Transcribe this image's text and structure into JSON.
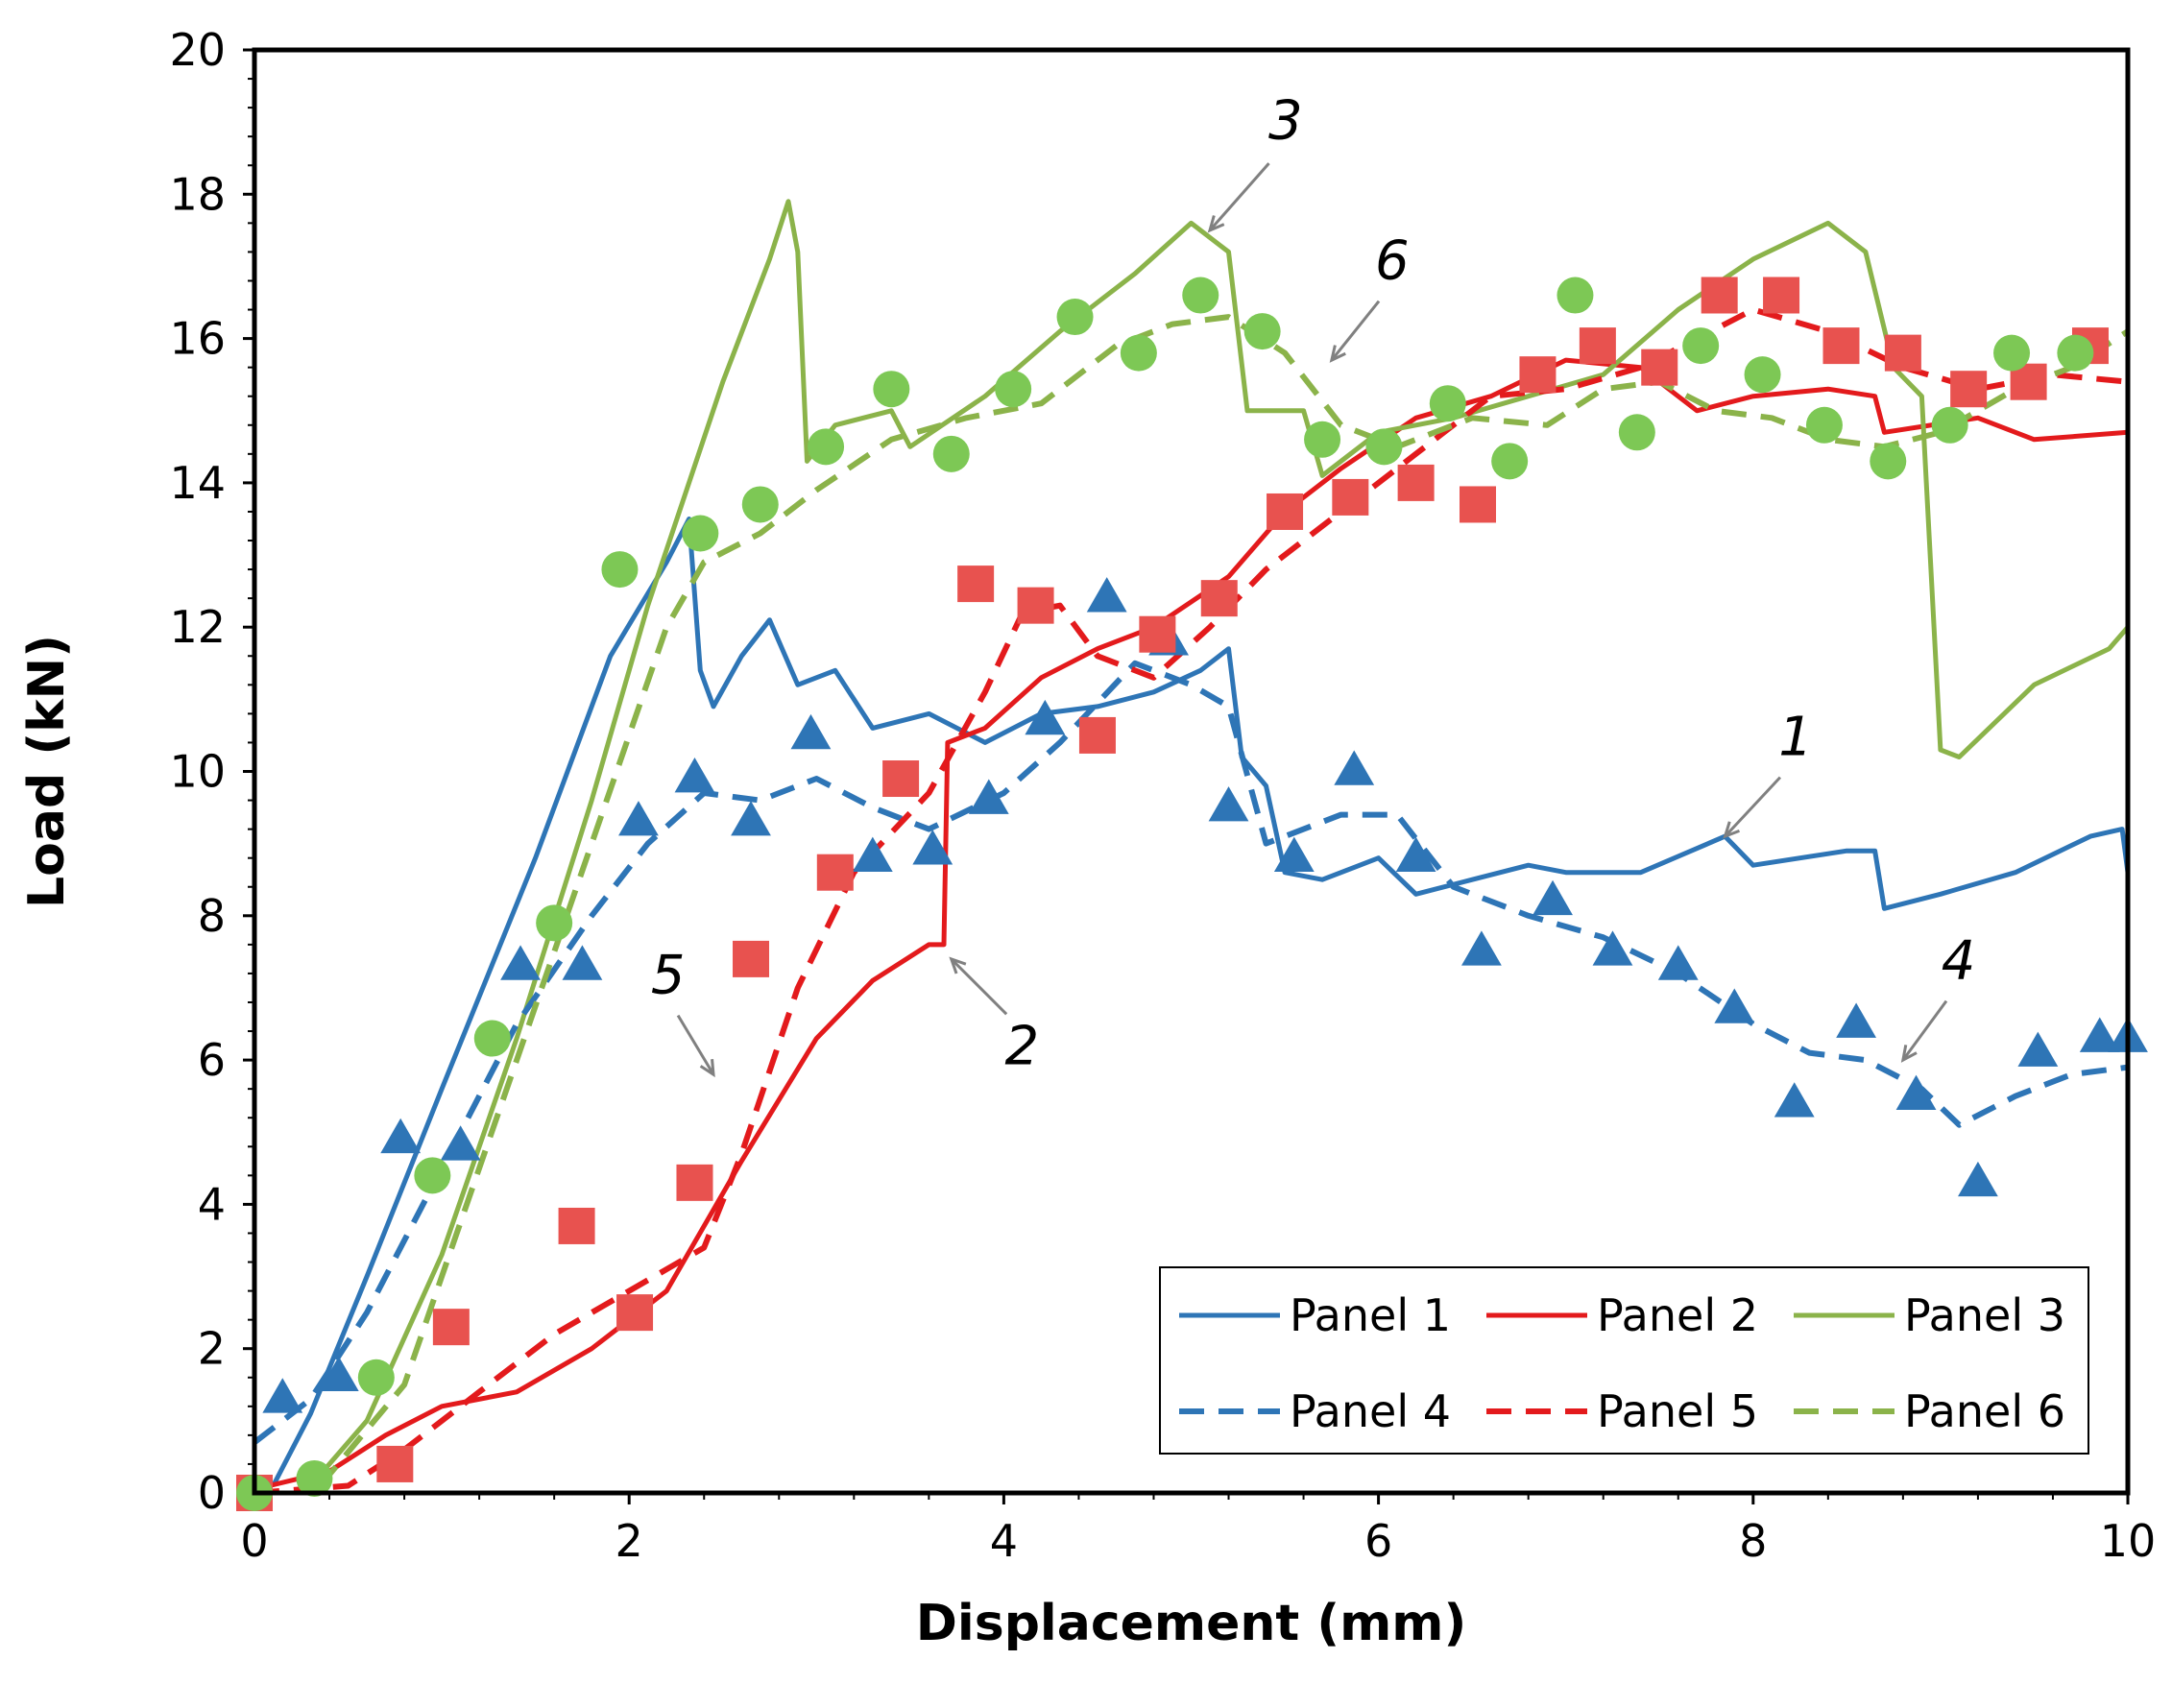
{
  "chart_data": {
    "type": "line",
    "title": "",
    "xlabel": "Displacement (mm)",
    "ylabel": "Load (kN)",
    "xlim": [
      0,
      10
    ],
    "ylim": [
      0,
      20
    ],
    "x_ticks": [
      "0",
      "2",
      "4",
      "6",
      "8",
      "10"
    ],
    "y_ticks": [
      "0",
      "2",
      "4",
      "6",
      "8",
      "10",
      "12",
      "14",
      "16",
      "18",
      "20"
    ],
    "grid": false,
    "legend_position": "bottom-right",
    "series": [
      {
        "name": "Panel 1",
        "color": "#2E75B6",
        "style": "solid",
        "points": [
          [
            0.1,
            0.1
          ],
          [
            0.3,
            1.1
          ],
          [
            0.6,
            3.0
          ],
          [
            1.0,
            5.6
          ],
          [
            1.5,
            8.8
          ],
          [
            1.9,
            11.6
          ],
          [
            2.2,
            12.9
          ],
          [
            2.32,
            13.5
          ],
          [
            2.38,
            11.4
          ],
          [
            2.45,
            10.9
          ],
          [
            2.6,
            11.6
          ],
          [
            2.75,
            12.1
          ],
          [
            2.9,
            11.2
          ],
          [
            3.1,
            11.4
          ],
          [
            3.3,
            10.6
          ],
          [
            3.6,
            10.8
          ],
          [
            3.9,
            10.4
          ],
          [
            4.2,
            10.8
          ],
          [
            4.5,
            10.9
          ],
          [
            4.8,
            11.1
          ],
          [
            5.05,
            11.4
          ],
          [
            5.2,
            11.7
          ],
          [
            5.27,
            10.2
          ],
          [
            5.4,
            9.8
          ],
          [
            5.5,
            8.6
          ],
          [
            5.7,
            8.5
          ],
          [
            6.0,
            8.8
          ],
          [
            6.2,
            8.3
          ],
          [
            6.5,
            8.5
          ],
          [
            6.8,
            8.7
          ],
          [
            7.0,
            8.6
          ],
          [
            7.4,
            8.6
          ],
          [
            7.85,
            9.1
          ],
          [
            8.0,
            8.7
          ],
          [
            8.5,
            8.9
          ],
          [
            8.65,
            8.9
          ],
          [
            8.7,
            8.1
          ],
          [
            9.0,
            8.3
          ],
          [
            9.4,
            8.6
          ],
          [
            9.8,
            9.1
          ],
          [
            9.97,
            9.2
          ],
          [
            10.0,
            8.6
          ]
        ]
      },
      {
        "name": "Panel 2",
        "color": "#E31A1C",
        "style": "solid",
        "points": [
          [
            0,
            0.05
          ],
          [
            0.4,
            0.3
          ],
          [
            0.7,
            0.8
          ],
          [
            1.0,
            1.2
          ],
          [
            1.4,
            1.4
          ],
          [
            1.8,
            2.0
          ],
          [
            2.2,
            2.8
          ],
          [
            2.6,
            4.6
          ],
          [
            3.0,
            6.3
          ],
          [
            3.3,
            7.1
          ],
          [
            3.6,
            7.6
          ],
          [
            3.68,
            7.6
          ],
          [
            3.7,
            10.4
          ],
          [
            3.9,
            10.6
          ],
          [
            4.2,
            11.3
          ],
          [
            4.5,
            11.7
          ],
          [
            4.8,
            12.0
          ],
          [
            5.2,
            12.7
          ],
          [
            5.5,
            13.6
          ],
          [
            5.8,
            14.2
          ],
          [
            6.2,
            14.9
          ],
          [
            6.6,
            15.2
          ],
          [
            7.0,
            15.7
          ],
          [
            7.4,
            15.6
          ],
          [
            7.7,
            15.0
          ],
          [
            8.0,
            15.2
          ],
          [
            8.4,
            15.3
          ],
          [
            8.65,
            15.2
          ],
          [
            8.7,
            14.7
          ],
          [
            9.2,
            14.9
          ],
          [
            9.5,
            14.6
          ],
          [
            10.0,
            14.7
          ]
        ]
      },
      {
        "name": "Panel 3",
        "color": "#8BB34A",
        "style": "solid",
        "points": [
          [
            0.3,
            0.1
          ],
          [
            0.6,
            1.0
          ],
          [
            1.0,
            3.3
          ],
          [
            1.4,
            6.3
          ],
          [
            1.8,
            9.6
          ],
          [
            2.1,
            12.3
          ],
          [
            2.5,
            15.4
          ],
          [
            2.75,
            17.1
          ],
          [
            2.85,
            17.9
          ],
          [
            2.9,
            17.2
          ],
          [
            2.95,
            14.3
          ],
          [
            3.1,
            14.8
          ],
          [
            3.4,
            15.0
          ],
          [
            3.5,
            14.5
          ],
          [
            3.9,
            15.2
          ],
          [
            4.3,
            16.1
          ],
          [
            4.7,
            16.9
          ],
          [
            5.0,
            17.6
          ],
          [
            5.2,
            17.2
          ],
          [
            5.3,
            15.0
          ],
          [
            5.6,
            15.0
          ],
          [
            5.7,
            14.1
          ],
          [
            6.0,
            14.7
          ],
          [
            6.4,
            14.9
          ],
          [
            6.8,
            15.2
          ],
          [
            7.2,
            15.5
          ],
          [
            7.6,
            16.4
          ],
          [
            8.0,
            17.1
          ],
          [
            8.4,
            17.6
          ],
          [
            8.6,
            17.2
          ],
          [
            8.75,
            15.6
          ],
          [
            8.9,
            15.2
          ],
          [
            9.0,
            10.3
          ],
          [
            9.1,
            10.2
          ],
          [
            9.5,
            11.2
          ],
          [
            9.9,
            11.7
          ],
          [
            10.0,
            12.0
          ]
        ]
      },
      {
        "name": "Panel 4",
        "color": "#2E75B6",
        "style": "dashed",
        "points": [
          [
            0,
            0.7
          ],
          [
            0.3,
            1.3
          ],
          [
            0.6,
            2.5
          ],
          [
            1.0,
            4.5
          ],
          [
            1.4,
            6.5
          ],
          [
            1.8,
            8.0
          ],
          [
            2.1,
            9.0
          ],
          [
            2.4,
            9.7
          ],
          [
            2.7,
            9.6
          ],
          [
            3.0,
            9.9
          ],
          [
            3.3,
            9.5
          ],
          [
            3.6,
            9.2
          ],
          [
            4.0,
            9.7
          ],
          [
            4.3,
            10.4
          ],
          [
            4.7,
            11.5
          ],
          [
            5.0,
            11.2
          ],
          [
            5.2,
            10.9
          ],
          [
            5.4,
            9.0
          ],
          [
            5.8,
            9.4
          ],
          [
            6.1,
            9.4
          ],
          [
            6.4,
            8.4
          ],
          [
            6.8,
            8.0
          ],
          [
            7.2,
            7.7
          ],
          [
            7.6,
            7.2
          ],
          [
            8.0,
            6.5
          ],
          [
            8.3,
            6.1
          ],
          [
            8.6,
            6.0
          ],
          [
            8.9,
            5.6
          ],
          [
            9.1,
            5.1
          ],
          [
            9.4,
            5.5
          ],
          [
            9.7,
            5.8
          ],
          [
            10.0,
            5.9
          ]
        ]
      },
      {
        "name": "Panel 5",
        "color": "#E31A1C",
        "style": "dashed",
        "points": [
          [
            0,
            0
          ],
          [
            0.5,
            0.1
          ],
          [
            0.8,
            0.6
          ],
          [
            1.2,
            1.4
          ],
          [
            1.6,
            2.2
          ],
          [
            2.0,
            2.8
          ],
          [
            2.4,
            3.4
          ],
          [
            2.6,
            4.7
          ],
          [
            2.9,
            7.0
          ],
          [
            3.2,
            8.6
          ],
          [
            3.6,
            9.7
          ],
          [
            3.9,
            11.1
          ],
          [
            4.1,
            12.2
          ],
          [
            4.3,
            12.3
          ],
          [
            4.5,
            11.6
          ],
          [
            4.8,
            11.3
          ],
          [
            5.1,
            12.0
          ],
          [
            5.4,
            12.8
          ],
          [
            5.8,
            13.6
          ],
          [
            6.2,
            14.4
          ],
          [
            6.6,
            15.2
          ],
          [
            7.0,
            15.3
          ],
          [
            7.4,
            15.6
          ],
          [
            7.7,
            16.0
          ],
          [
            8.0,
            16.4
          ],
          [
            8.4,
            16.1
          ],
          [
            8.8,
            15.6
          ],
          [
            9.2,
            15.3
          ],
          [
            9.6,
            15.5
          ],
          [
            10.0,
            15.4
          ]
        ]
      },
      {
        "name": "Panel 6",
        "color": "#8BB34A",
        "style": "dashed",
        "points": [
          [
            0.35,
            0.1
          ],
          [
            0.8,
            1.5
          ],
          [
            1.2,
            4.5
          ],
          [
            1.6,
            7.5
          ],
          [
            2.0,
            10.5
          ],
          [
            2.2,
            12.0
          ],
          [
            2.4,
            12.9
          ],
          [
            2.7,
            13.3
          ],
          [
            3.0,
            13.9
          ],
          [
            3.4,
            14.6
          ],
          [
            3.8,
            14.9
          ],
          [
            4.2,
            15.1
          ],
          [
            4.6,
            15.9
          ],
          [
            4.9,
            16.2
          ],
          [
            5.2,
            16.3
          ],
          [
            5.5,
            15.8
          ],
          [
            5.8,
            14.8
          ],
          [
            6.1,
            14.5
          ],
          [
            6.5,
            14.9
          ],
          [
            6.9,
            14.8
          ],
          [
            7.2,
            15.3
          ],
          [
            7.5,
            15.4
          ],
          [
            7.8,
            15.0
          ],
          [
            8.1,
            14.9
          ],
          [
            8.4,
            14.6
          ],
          [
            8.7,
            14.5
          ],
          [
            9.0,
            14.7
          ],
          [
            9.4,
            15.3
          ],
          [
            9.7,
            15.6
          ],
          [
            10.0,
            16.1
          ]
        ]
      }
    ],
    "markers": [
      {
        "series": "Panel 4",
        "shape": "triangle",
        "color": "#2E75B6",
        "points": [
          [
            0.15,
            1.3
          ],
          [
            0.45,
            1.6
          ],
          [
            0.78,
            4.9
          ],
          [
            1.1,
            4.8
          ],
          [
            1.42,
            7.3
          ],
          [
            1.75,
            7.3
          ],
          [
            2.05,
            9.3
          ],
          [
            2.35,
            9.9
          ],
          [
            2.65,
            9.3
          ],
          [
            2.97,
            10.5
          ],
          [
            3.3,
            8.8
          ],
          [
            3.62,
            8.9
          ],
          [
            3.92,
            9.6
          ],
          [
            4.22,
            10.7
          ],
          [
            4.55,
            12.4
          ],
          [
            4.88,
            11.8
          ],
          [
            5.2,
            9.5
          ],
          [
            5.55,
            8.8
          ],
          [
            5.87,
            10.0
          ],
          [
            6.2,
            8.8
          ],
          [
            6.55,
            7.5
          ],
          [
            6.93,
            8.2
          ],
          [
            7.25,
            7.5
          ],
          [
            7.6,
            7.3
          ],
          [
            7.9,
            6.7
          ],
          [
            8.22,
            5.4
          ],
          [
            8.55,
            6.5
          ],
          [
            8.87,
            5.5
          ],
          [
            9.2,
            4.3
          ],
          [
            9.52,
            6.1
          ],
          [
            9.85,
            6.3
          ],
          [
            10.0,
            6.3
          ]
        ]
      },
      {
        "series": "Panel 5",
        "shape": "square",
        "color": "#E8524F",
        "points": [
          [
            0,
            0
          ],
          [
            0.75,
            0.4
          ],
          [
            1.05,
            2.3
          ],
          [
            1.72,
            3.7
          ],
          [
            2.03,
            2.5
          ],
          [
            2.35,
            4.3
          ],
          [
            2.65,
            7.4
          ],
          [
            3.1,
            8.6
          ],
          [
            3.45,
            9.9
          ],
          [
            3.85,
            12.6
          ],
          [
            4.17,
            12.3
          ],
          [
            4.5,
            10.5
          ],
          [
            4.82,
            11.9
          ],
          [
            5.15,
            12.4
          ],
          [
            5.5,
            13.6
          ],
          [
            5.85,
            13.8
          ],
          [
            6.2,
            14.0
          ],
          [
            6.53,
            13.7
          ],
          [
            6.85,
            15.5
          ],
          [
            7.17,
            15.9
          ],
          [
            7.5,
            15.6
          ],
          [
            7.82,
            16.6
          ],
          [
            8.15,
            16.6
          ],
          [
            8.47,
            15.9
          ],
          [
            8.8,
            15.8
          ],
          [
            9.15,
            15.3
          ],
          [
            9.47,
            15.4
          ],
          [
            9.8,
            15.9
          ]
        ]
      },
      {
        "series": "Panel 6",
        "shape": "circle",
        "color": "#7DC855",
        "points": [
          [
            0,
            0
          ],
          [
            0.32,
            0.2
          ],
          [
            0.65,
            1.6
          ],
          [
            0.95,
            4.4
          ],
          [
            1.27,
            6.3
          ],
          [
            1.6,
            7.9
          ],
          [
            1.95,
            12.8
          ],
          [
            2.38,
            13.3
          ],
          [
            2.7,
            13.7
          ],
          [
            3.05,
            14.5
          ],
          [
            3.4,
            15.3
          ],
          [
            3.72,
            14.4
          ],
          [
            4.05,
            15.3
          ],
          [
            4.38,
            16.3
          ],
          [
            4.72,
            15.8
          ],
          [
            5.05,
            16.6
          ],
          [
            5.38,
            16.1
          ],
          [
            5.7,
            14.6
          ],
          [
            6.03,
            14.5
          ],
          [
            6.37,
            15.1
          ],
          [
            6.7,
            14.3
          ],
          [
            7.05,
            16.6
          ],
          [
            7.38,
            14.7
          ],
          [
            7.72,
            15.9
          ],
          [
            8.05,
            15.5
          ],
          [
            8.38,
            14.8
          ],
          [
            8.72,
            14.3
          ],
          [
            9.05,
            14.8
          ],
          [
            9.38,
            15.8
          ],
          [
            9.72,
            15.8
          ]
        ]
      }
    ],
    "annotations": [
      {
        "text": "1",
        "x": 7.85,
        "y": 9.1
      },
      {
        "text": "2",
        "x": 3.72,
        "y": 7.4
      },
      {
        "text": "3",
        "x": 5.1,
        "y": 17.5
      },
      {
        "text": "4",
        "x": 8.8,
        "y": 6.0
      },
      {
        "text": "5",
        "x": 2.45,
        "y": 5.8
      },
      {
        "text": "6",
        "x": 5.75,
        "y": 15.7
      }
    ]
  }
}
